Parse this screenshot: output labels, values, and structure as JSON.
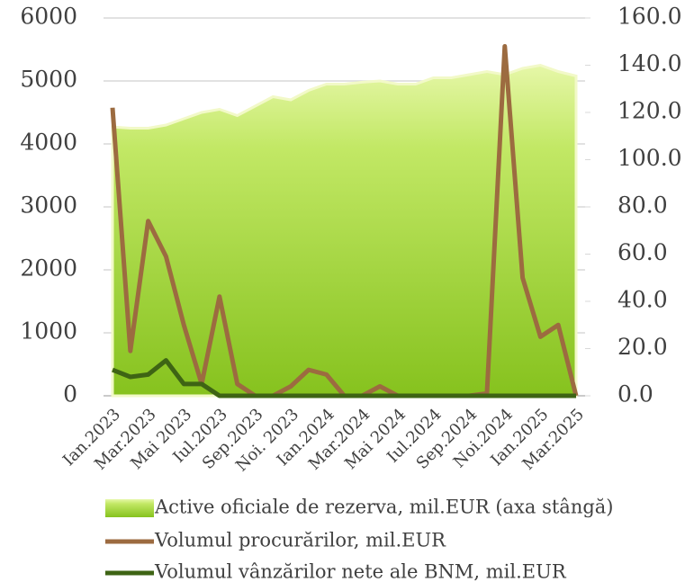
{
  "chart_data": {
    "type": "area_line",
    "categories": [
      "Ian.2023",
      null,
      "Mar.2023",
      null,
      "Mai 2023",
      null,
      "Iul.2023",
      null,
      "Sep.2023",
      null,
      "Noi. 2023",
      null,
      "Ian.2024",
      null,
      "Mar.2024",
      null,
      "Mai 2024",
      null,
      "Iul.2024",
      null,
      "Sep.2024",
      null,
      "Noi.2024",
      null,
      "Ian.2025",
      null,
      "Mar.2025"
    ],
    "series": [
      {
        "name": "Active oficiale de rezerva, mil.EUR (axa stângă)",
        "type": "area",
        "color": "#9fd630",
        "axis": "y",
        "values": [
          4270,
          4250,
          4250,
          4300,
          4400,
          4500,
          4550,
          4450,
          4600,
          4750,
          4700,
          4850,
          4950,
          4950,
          4980,
          5000,
          4950,
          4950,
          5050,
          5050,
          5100,
          5150,
          5100,
          5200,
          5250,
          5150,
          5080
        ]
      },
      {
        "name": "Volumul procurărilor, mil.EUR",
        "type": "line",
        "color": "#9c6b40",
        "axis": "y2",
        "values": [
          122,
          19,
          74,
          59,
          30,
          5,
          42,
          5,
          0,
          0,
          4,
          11,
          9,
          0,
          0,
          4,
          0,
          0,
          0,
          0,
          0,
          1,
          148,
          50,
          25,
          30,
          0
        ]
      },
      {
        "name": "Volumul vânzărilor nete ale BNM, mil.EUR",
        "type": "line",
        "color": "#3e6414",
        "axis": "y2",
        "values": [
          11,
          8,
          9,
          15,
          5,
          5,
          0,
          0,
          0,
          0,
          0,
          0,
          0,
          0,
          0,
          0,
          0,
          0,
          0,
          0,
          0,
          0,
          0,
          0,
          0,
          0,
          0
        ]
      }
    ],
    "ylim": [
      0,
      6000
    ],
    "yticks": [
      0,
      1000,
      2000,
      3000,
      4000,
      5000,
      6000
    ],
    "y2lim": [
      0,
      160
    ],
    "y2ticks": [
      {
        "value": 0,
        "label": "0.0"
      },
      {
        "value": 20,
        "label": "20.0"
      },
      {
        "value": 40,
        "label": "40.0"
      },
      {
        "value": 60,
        "label": "60.0"
      },
      {
        "value": 80,
        "label": "80.0"
      },
      {
        "value": 100,
        "label": "100.0"
      },
      {
        "value": 120,
        "label": "120.0"
      },
      {
        "value": 140,
        "label": "140.0"
      },
      {
        "value": 160,
        "label": "160.0"
      }
    ],
    "grid": true
  }
}
